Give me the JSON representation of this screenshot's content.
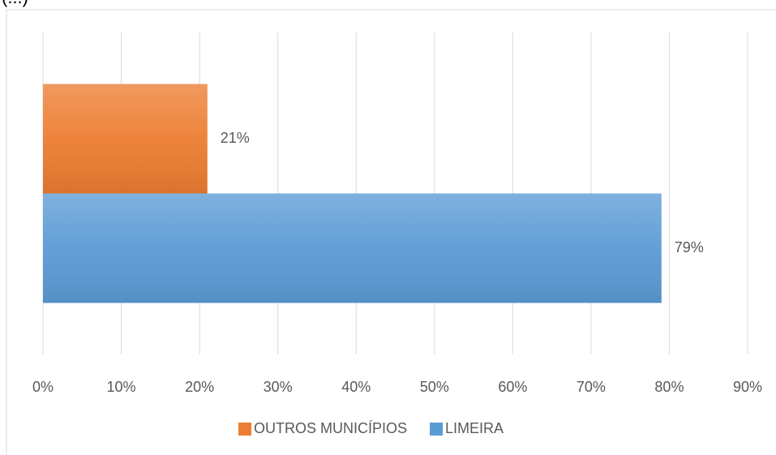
{
  "chart_data": {
    "type": "hbar",
    "annotation": "(...)",
    "categories": [
      null
    ],
    "series": [
      {
        "name": "OUTROS MUNICÍPIOS",
        "color": "#ed7d31",
        "values": [
          21
        ],
        "value_labels": [
          "21%"
        ]
      },
      {
        "name": "LIMEIRA",
        "color": "#5b9bd5",
        "values": [
          79
        ],
        "value_labels": [
          "79%"
        ]
      }
    ],
    "xlim": [
      0,
      90
    ],
    "xticks": [
      {
        "value": 0,
        "label": "0%"
      },
      {
        "value": 10,
        "label": "10%"
      },
      {
        "value": 20,
        "label": "20%"
      },
      {
        "value": 30,
        "label": "30%"
      },
      {
        "value": 40,
        "label": "40%"
      },
      {
        "value": 50,
        "label": "50%"
      },
      {
        "value": 60,
        "label": "60%"
      },
      {
        "value": 70,
        "label": "70%"
      },
      {
        "value": 80,
        "label": "80%"
      },
      {
        "value": 90,
        "label": "90%"
      }
    ],
    "grid": true,
    "legend": "bottom"
  }
}
